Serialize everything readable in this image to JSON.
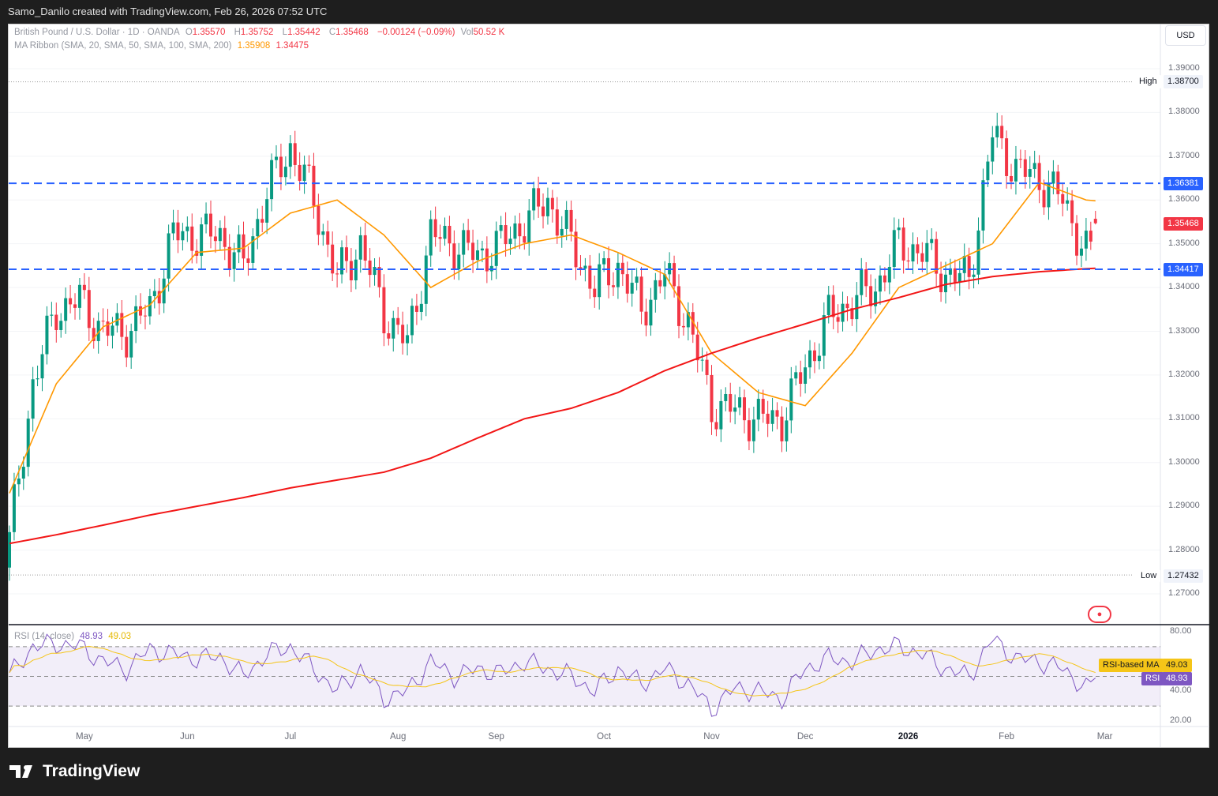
{
  "credit": "Samo_Danilo created with TradingView.com, Feb 26, 2026 07:52 UTC",
  "legend": {
    "symbol": "British Pound / U.S. Dollar · 1D · OANDA",
    "o_label": "O",
    "o": "1.35570",
    "h_label": "H",
    "h": "1.35752",
    "l_label": "L",
    "l": "1.35442",
    "c_label": "C",
    "c": "1.35468",
    "change": "−0.00124 (−0.09%)",
    "vol_label": "Vol",
    "vol": "50.52 K",
    "ma": "MA Ribbon (SMA, 20, SMA, 50, SMA, 100, SMA, 200)",
    "ma1": "1.35908",
    "ma2": "1.34475",
    "rsi": "RSI (14, close)",
    "rsi_val": "48.93",
    "rsi_ma_val": "49.03"
  },
  "currency": "USD",
  "price_labels": {
    "high_label": "High",
    "high": "1.38700",
    "low_label": "Low",
    "low": "1.27432",
    "res": "1.36381",
    "sup": "1.34417",
    "last": "1.35468",
    "rsi_ma_label": "RSI-based MA",
    "rsi_ma": "49.03",
    "rsi_label": "RSI",
    "rsi": "48.93"
  },
  "colors": {
    "up": "#089981",
    "down": "#f23645",
    "sma20": "#ff9800",
    "sma200": "#f21616",
    "level": "#2962ff",
    "rsi": "#7e57c2",
    "rsi_ma": "#f5c518"
  },
  "footer": "TradingView",
  "chart_data": {
    "type": "candlestick",
    "ylim": [
      1.265,
      1.392
    ],
    "yticks": [
      "1.39000",
      "1.38000",
      "1.37000",
      "1.36000",
      "1.35000",
      "1.34000",
      "1.33000",
      "1.32000",
      "1.31000",
      "1.30000",
      "1.29000",
      "1.28000",
      "1.27000"
    ],
    "xticks": [
      {
        "label": "May",
        "bar": 16
      },
      {
        "label": "Jun",
        "bar": 38
      },
      {
        "label": "Jul",
        "bar": 60
      },
      {
        "label": "Aug",
        "bar": 83
      },
      {
        "label": "Sep",
        "bar": 104
      },
      {
        "label": "Oct",
        "bar": 127
      },
      {
        "label": "Nov",
        "bar": 150
      },
      {
        "label": "Dec",
        "bar": 170
      },
      {
        "label": "2026",
        "bar": 192
      },
      {
        "label": "Feb",
        "bar": 213
      },
      {
        "label": "Mar",
        "bar": 234
      }
    ],
    "bars": 233,
    "close_step": 5,
    "closes": [
      1.282,
      1.318,
      1.335,
      1.337,
      1.33,
      1.33,
      1.335,
      1.352,
      1.352,
      1.352,
      1.345,
      1.362,
      1.372,
      1.36,
      1.342,
      1.35,
      1.334,
      1.327,
      1.352,
      1.35,
      1.347,
      1.35,
      1.355,
      1.36,
      1.35,
      1.34,
      1.345,
      1.335,
      1.343,
      1.332,
      1.313,
      1.312,
      1.31,
      1.31,
      1.322,
      1.333,
      1.337,
      1.34,
      1.35,
      1.348,
      1.343,
      1.342,
      1.375,
      1.367,
      1.365,
      1.36,
      1.348
    ],
    "last_bar": {
      "open": 1.3557,
      "high": 1.35752,
      "low": 1.35442,
      "close": 1.35468
    },
    "ma_step": 10,
    "sma20": [
      1.293,
      1.318,
      1.331,
      1.336,
      1.348,
      1.349,
      1.357,
      1.36,
      1.352,
      1.34,
      1.346,
      1.35,
      1.352,
      1.348,
      1.343,
      1.325,
      1.316,
      1.313,
      1.325,
      1.34,
      1.345,
      1.35,
      1.364,
      1.36,
      1.35908
    ],
    "sma200": [
      1.2815,
      1.2835,
      1.2857,
      1.288,
      1.29,
      1.292,
      1.2942,
      1.296,
      1.2978,
      1.301,
      1.3056,
      1.31,
      1.3124,
      1.316,
      1.321,
      1.325,
      1.3285,
      1.3317,
      1.335,
      1.3377,
      1.3407,
      1.3425,
      1.3436,
      1.3443,
      1.34475
    ],
    "levels": [
      1.36381,
      1.34417
    ],
    "high": 1.387,
    "low": 1.27432,
    "rsi": {
      "ylim": [
        15,
        85
      ],
      "yticks": [
        "80.00",
        "40.00",
        "20.00"
      ],
      "bands": [
        70,
        50,
        30
      ],
      "step": 5,
      "values": [
        50,
        70,
        72,
        70,
        60,
        55,
        68,
        65,
        62,
        63,
        50,
        65,
        70,
        55,
        40,
        55,
        35,
        40,
        60,
        50,
        55,
        52,
        60,
        55,
        50,
        40,
        55,
        45,
        55,
        45,
        28,
        42,
        40,
        35,
        55,
        62,
        60,
        68,
        70,
        65,
        55,
        50,
        75,
        62,
        60,
        55,
        42,
        48.93
      ]
    }
  }
}
